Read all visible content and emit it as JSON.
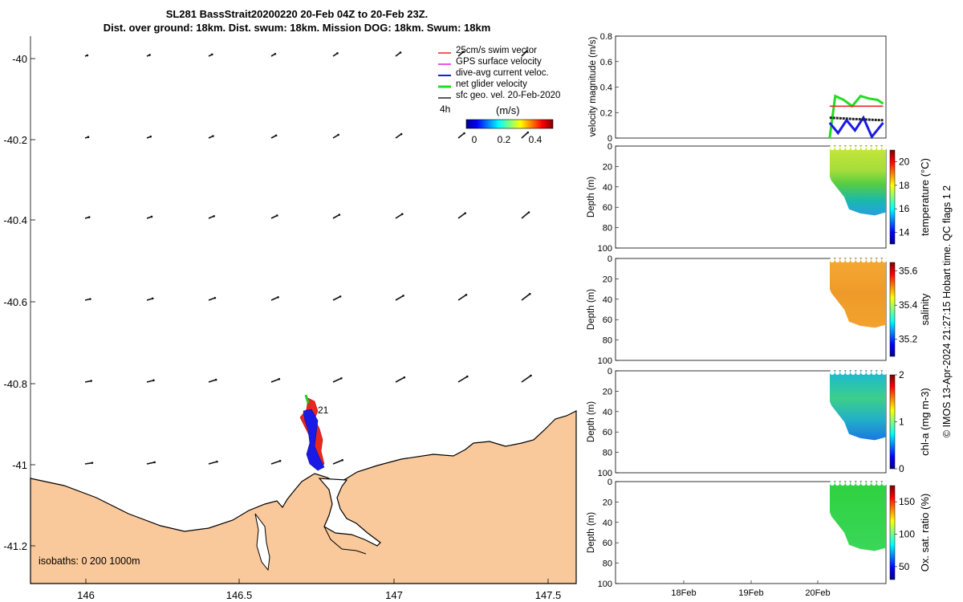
{
  "header": {
    "title_line1": "SL281 BassStrait20200220 20-Feb 04Z to 20-Feb 23Z.",
    "title_line2": "Dist. over ground: 18km. Dist. swum: 18km. Mission DOG: 18km. Swum: 18km"
  },
  "colors": {
    "land": "#f9c99b",
    "swim_vector": "#e8281e",
    "gps_velocity": "#e020e0",
    "dive_avg_current": "#1a1ae6",
    "net_glider_velocity": "#22dd22",
    "sfc_geo_velocity": "#222222",
    "track_red": "#e8281e",
    "track_blue": "#1a1ae6",
    "track_green": "#22cc22",
    "colormap_low": "#00008f",
    "colormap_high": "#800000"
  },
  "map": {
    "legend": [
      {
        "label": "25cm/s swim vector",
        "color_key": "swim_vector"
      },
      {
        "label": "GPS surface velocity",
        "color_key": "gps_velocity"
      },
      {
        "label": "dive-avg current veloc.",
        "color_key": "dive_avg_current"
      },
      {
        "label": "net glider velocity",
        "color_key": "net_glider_velocity"
      },
      {
        "label": "sfc geo. vel. 20-Feb-2020",
        "color_key": "sfc_geo_velocity"
      }
    ],
    "legend_4h": "4h",
    "colorbar_label": "(m/s)",
    "colorbar_ticks": [
      "0",
      "0.2",
      "0.4"
    ],
    "lat_ticks": [
      "-40",
      "-40.2",
      "-40.4",
      "-40.6",
      "-40.8",
      "-41",
      "-41.2"
    ],
    "lon_ticks": [
      "146",
      "146.5",
      "147",
      "147.5"
    ],
    "isobaths_label": "isobaths: 0   200  1000m",
    "track_label": "21"
  },
  "side_note": "© IMOS 13-Apr-2024 21:27:15 Hobart time. QC flags 1  2",
  "chart_data": [
    {
      "type": "line",
      "ylabel": "velocity magnitude (m/s)",
      "ylim": [
        0,
        0.8
      ],
      "yticks": [
        "0",
        "0.2",
        "0.4",
        "0.6",
        "0.8"
      ],
      "x_start": "2020-02-17",
      "x_end": "2020-02-21",
      "series": [
        {
          "color_key": "net_glider_velocity",
          "x": [
            "2020-02-20 04:00",
            "2020-02-20 06:00",
            "2020-02-20 09:00",
            "2020-02-20 12:00",
            "2020-02-20 15:00",
            "2020-02-20 18:00",
            "2020-02-20 21:00",
            "2020-02-20 23:00"
          ],
          "values": [
            0.0,
            0.33,
            0.3,
            0.25,
            0.33,
            0.31,
            0.3,
            0.27
          ]
        },
        {
          "color_key": "swim_vector",
          "x": [
            "2020-02-20 04:00",
            "2020-02-20 23:00"
          ],
          "values": [
            0.25,
            0.25
          ]
        },
        {
          "color_key": "dive_avg_current",
          "x": [
            "2020-02-20 04:00",
            "2020-02-20 07:00",
            "2020-02-20 10:00",
            "2020-02-20 13:00",
            "2020-02-20 16:00",
            "2020-02-20 19:00",
            "2020-02-20 23:00"
          ],
          "values": [
            0.12,
            0.04,
            0.14,
            0.06,
            0.16,
            0.01,
            0.12
          ]
        },
        {
          "color_key": "sfc_geo_velocity",
          "x": [
            "2020-02-20 04:00",
            "2020-02-20 12:00",
            "2020-02-20 23:00"
          ],
          "values": [
            0.16,
            0.15,
            0.14
          ]
        }
      ]
    },
    {
      "type": "heatmap",
      "ylabel": "Depth (m)",
      "cbar_label": "temperature (°C)",
      "cbar_range": [
        13,
        21
      ],
      "cbar_ticks": [
        "14",
        "16",
        "18",
        "20"
      ],
      "yticks": [
        "0",
        "20",
        "40",
        "60",
        "80",
        "100"
      ],
      "ylim": [
        0,
        100
      ]
    },
    {
      "type": "heatmap",
      "ylabel": "Depth (m)",
      "cbar_label": "salinity",
      "cbar_range": [
        35.1,
        35.65
      ],
      "cbar_ticks": [
        "35.2",
        "35.4",
        "35.6"
      ],
      "yticks": [
        "0",
        "20",
        "40",
        "60",
        "80",
        "100"
      ],
      "ylim": [
        0,
        100
      ]
    },
    {
      "type": "heatmap",
      "ylabel": "Depth (m)",
      "cbar_label": "chl-a (mg m-3)",
      "cbar_range": [
        0,
        2
      ],
      "cbar_ticks": [
        "0",
        "1",
        "2"
      ],
      "yticks": [
        "0",
        "20",
        "40",
        "60",
        "80",
        "100"
      ],
      "ylim": [
        0,
        100
      ]
    },
    {
      "type": "heatmap",
      "ylabel": "Depth (m)",
      "cbar_label": "Ox. sat. ratio (%)",
      "cbar_range": [
        30,
        175
      ],
      "cbar_ticks": [
        "50",
        "100",
        "150"
      ],
      "yticks": [
        "0",
        "20",
        "40",
        "60",
        "80",
        "100"
      ],
      "ylim": [
        0,
        100
      ],
      "xticks": [
        "18Feb",
        "19Feb",
        "20Feb"
      ]
    }
  ]
}
